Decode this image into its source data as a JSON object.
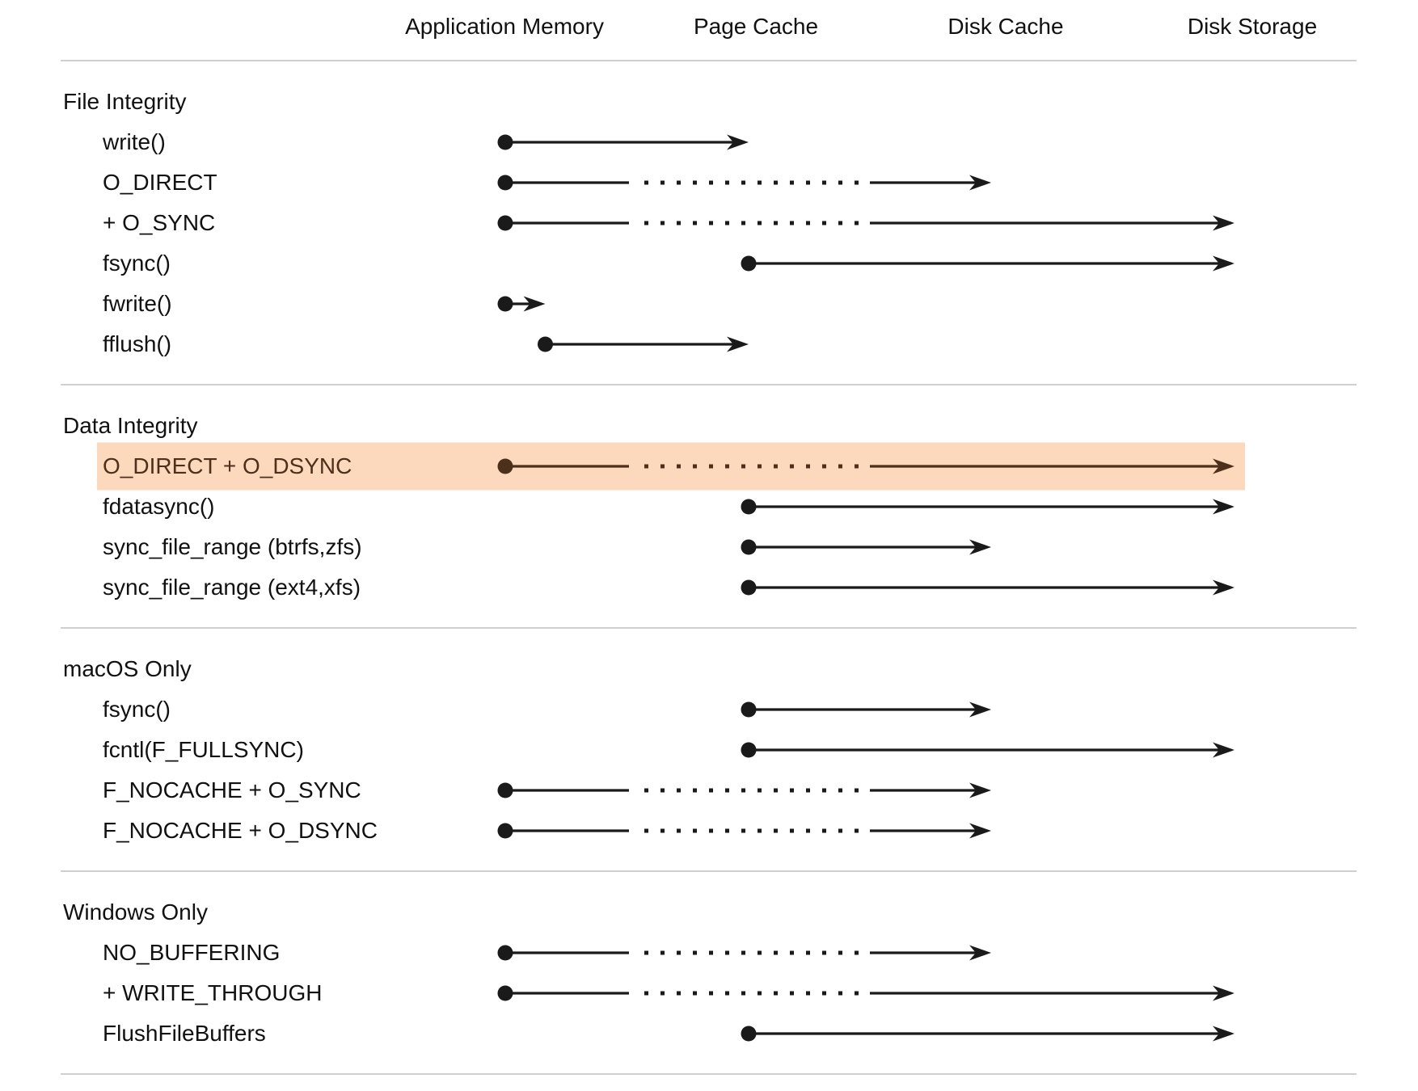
{
  "columns": [
    {
      "label": "Application Memory"
    },
    {
      "label": "Page Cache"
    },
    {
      "label": "Disk Cache"
    },
    {
      "label": "Disk Storage"
    }
  ],
  "colors": {
    "text": "#111111",
    "arrow": "#1a1a1a",
    "divider": "#d0d0d0",
    "highlight_bg": "#fcd9bd",
    "highlight_fg": "#4d301c",
    "page_background": "#ffffff"
  },
  "sections": [
    {
      "title": "File Integrity",
      "rows": [
        {
          "label": "write()",
          "from": "app_memory",
          "to": "page_cache",
          "direct_io_dotted": false,
          "highlight": false
        },
        {
          "label": "O_DIRECT",
          "from": "app_memory",
          "to": "disk_cache",
          "direct_io_dotted": true,
          "highlight": false
        },
        {
          "label": "+ O_SYNC",
          "from": "app_memory",
          "to": "disk_storage",
          "direct_io_dotted": true,
          "highlight": false
        },
        {
          "label": "fsync()",
          "from": "page_cache",
          "to": "disk_storage",
          "direct_io_dotted": false,
          "highlight": false
        },
        {
          "label": "fwrite()",
          "from": "app_memory",
          "to": "library_buffer",
          "direct_io_dotted": false,
          "highlight": false
        },
        {
          "label": "fflush()",
          "from": "library_buffer",
          "to": "page_cache",
          "direct_io_dotted": false,
          "highlight": false
        }
      ]
    },
    {
      "title": "Data Integrity",
      "rows": [
        {
          "label": "O_DIRECT + O_DSYNC",
          "from": "app_memory",
          "to": "disk_storage",
          "direct_io_dotted": true,
          "highlight": true
        },
        {
          "label": "fdatasync()",
          "from": "page_cache",
          "to": "disk_storage",
          "direct_io_dotted": false,
          "highlight": false
        },
        {
          "label": "sync_file_range (btrfs,zfs)",
          "from": "page_cache",
          "to": "disk_cache",
          "direct_io_dotted": false,
          "highlight": false
        },
        {
          "label": "sync_file_range (ext4,xfs)",
          "from": "page_cache",
          "to": "disk_storage",
          "direct_io_dotted": false,
          "highlight": false
        }
      ]
    },
    {
      "title": "macOS Only",
      "rows": [
        {
          "label": "fsync()",
          "from": "page_cache",
          "to": "disk_cache",
          "direct_io_dotted": false,
          "highlight": false
        },
        {
          "label": "fcntl(F_FULLSYNC)",
          "from": "page_cache",
          "to": "disk_storage",
          "direct_io_dotted": false,
          "highlight": false
        },
        {
          "label": "F_NOCACHE + O_SYNC",
          "from": "app_memory",
          "to": "disk_cache",
          "direct_io_dotted": true,
          "highlight": false
        },
        {
          "label": "F_NOCACHE + O_DSYNC",
          "from": "app_memory",
          "to": "disk_cache",
          "direct_io_dotted": true,
          "highlight": false
        }
      ]
    },
    {
      "title": "Windows Only",
      "rows": [
        {
          "label": "NO_BUFFERING",
          "from": "app_memory",
          "to": "disk_cache",
          "direct_io_dotted": true,
          "highlight": false
        },
        {
          "label": "+ WRITE_THROUGH",
          "from": "app_memory",
          "to": "disk_storage",
          "direct_io_dotted": true,
          "highlight": false
        },
        {
          "label": "FlushFileBuffers",
          "from": "page_cache",
          "to": "disk_storage",
          "direct_io_dotted": false,
          "highlight": false
        }
      ]
    }
  ]
}
